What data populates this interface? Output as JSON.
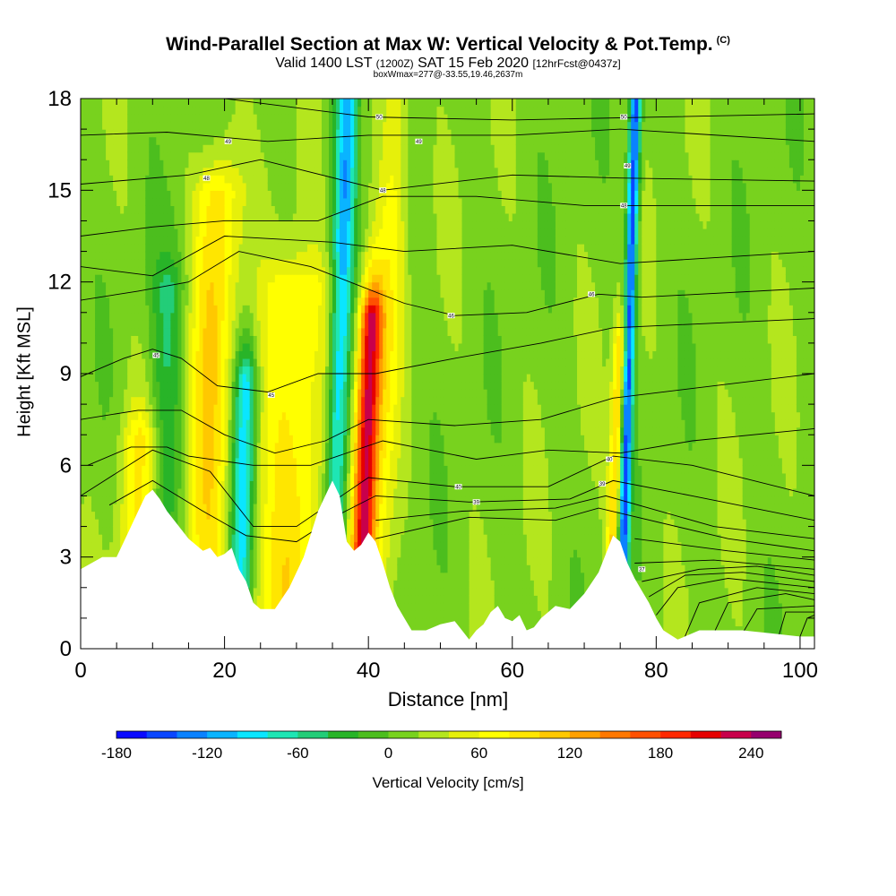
{
  "chart_data": {
    "type": "heatmap",
    "title": "Wind-Parallel Section at Max W: Vertical Velocity & Pot.Temp.",
    "title_mark": "(C)",
    "subtitle_main": "Valid 1400 LST",
    "subtitle_utc": "(1200Z)",
    "subtitle_date": "SAT 15 Feb 2020",
    "subtitle_fcst": "[12hrFcst@0437z]",
    "box_line": "boxWmax=277@-33.55,19.46,2637m",
    "xlabel": "Distance [nm]",
    "ylabel": "Height [Kft MSL]",
    "xlim": [
      0,
      102
    ],
    "ylim": [
      0,
      18
    ],
    "xticks": [
      "0",
      "20",
      "40",
      "60",
      "80",
      "100"
    ],
    "yticks": [
      "0",
      "3",
      "6",
      "9",
      "12",
      "15",
      "18"
    ],
    "colorbar": {
      "label": "Vertical Velocity [cm/s]",
      "ticks": [
        "-180",
        "-120",
        "-60",
        "0",
        "60",
        "120",
        "180",
        "240"
      ],
      "range": [
        -180,
        260
      ],
      "step": 20,
      "colors": [
        "#0a0aff",
        "#0a46ff",
        "#0a82ff",
        "#0ab4ff",
        "#0ae6ff",
        "#1ee6b4",
        "#23cd78",
        "#28b428",
        "#4cbe1e",
        "#78d21e",
        "#b4e61e",
        "#e6f00a",
        "#ffff00",
        "#ffe600",
        "#ffc800",
        "#ffa000",
        "#ff7800",
        "#ff5000",
        "#ff2800",
        "#e60000",
        "#c8004b",
        "#96006e"
      ]
    },
    "updraft_features": [
      {
        "x": 8,
        "width": 2.5,
        "w": 70,
        "ztop": 7
      },
      {
        "x": 17.5,
        "width": 3,
        "w": 85,
        "ztop": 15
      },
      {
        "x": 29,
        "width": 5,
        "w": 75,
        "ztop": 12
      },
      {
        "x": 39.5,
        "width": 1.6,
        "w": 210,
        "ztop": 11
      },
      {
        "x": 42,
        "width": 2,
        "w": 50,
        "ztop": 18
      },
      {
        "x": 74.3,
        "width": 1.0,
        "w": 100,
        "ztop": 10
      }
    ],
    "downdraft_features": [
      {
        "x": 11.5,
        "width": 2.5,
        "w": -50,
        "ztop": 12
      },
      {
        "x": 22.5,
        "width": 1.6,
        "w": -110,
        "ztop": 9
      },
      {
        "x": 35.5,
        "width": 1.5,
        "w": -120,
        "ztop": 18
      },
      {
        "x": 75.6,
        "width": 0.8,
        "w": -170,
        "ztop": 18
      }
    ],
    "terrain_profile": [
      [
        0,
        2.6
      ],
      [
        3,
        3
      ],
      [
        5,
        3
      ],
      [
        6,
        3.5
      ],
      [
        7,
        4
      ],
      [
        8,
        4.5
      ],
      [
        9,
        5
      ],
      [
        10,
        5.2
      ],
      [
        11,
        4.9
      ],
      [
        12,
        4.5
      ],
      [
        13,
        4.2
      ],
      [
        14,
        3.9
      ],
      [
        15,
        3.6
      ],
      [
        16,
        3.4
      ],
      [
        17,
        3.2
      ],
      [
        18,
        3.3
      ],
      [
        19,
        3.0
      ],
      [
        20,
        3.1
      ],
      [
        21,
        3.3
      ],
      [
        22,
        2.6
      ],
      [
        23,
        2.2
      ],
      [
        24,
        1.5
      ],
      [
        25,
        1.3
      ],
      [
        27,
        1.3
      ],
      [
        29,
        2
      ],
      [
        31,
        3
      ],
      [
        33,
        4.5
      ],
      [
        35,
        5.5
      ],
      [
        36,
        5.0
      ],
      [
        37,
        3.5
      ],
      [
        38,
        3.2
      ],
      [
        39,
        3.4
      ],
      [
        40,
        3.8
      ],
      [
        41,
        3.5
      ],
      [
        42,
        2.8
      ],
      [
        43,
        2
      ],
      [
        44,
        1.4
      ],
      [
        45,
        1
      ],
      [
        46,
        0.6
      ],
      [
        48,
        0.6
      ],
      [
        50,
        0.8
      ],
      [
        52,
        0.9
      ],
      [
        53,
        0.6
      ],
      [
        54,
        0.3
      ],
      [
        55,
        0.6
      ],
      [
        56,
        0.8
      ],
      [
        57,
        1.2
      ],
      [
        58,
        1.4
      ],
      [
        59,
        1.0
      ],
      [
        60,
        0.9
      ],
      [
        61,
        1.1
      ],
      [
        62,
        0.6
      ],
      [
        63,
        0.7
      ],
      [
        64,
        1.0
      ],
      [
        65,
        1.2
      ],
      [
        66,
        1.4
      ],
      [
        68,
        1.3
      ],
      [
        70,
        1.8
      ],
      [
        72,
        2.5
      ],
      [
        74,
        3.7
      ],
      [
        75,
        3.5
      ],
      [
        76,
        2.8
      ],
      [
        77,
        2.3
      ],
      [
        78,
        1.9
      ],
      [
        79,
        1.5
      ],
      [
        80,
        1.0
      ],
      [
        81,
        0.6
      ],
      [
        83,
        0.3
      ],
      [
        86,
        0.6
      ],
      [
        92,
        0.6
      ],
      [
        96,
        0.5
      ],
      [
        100,
        0.4
      ],
      [
        102,
        0.4
      ]
    ],
    "isentropes": [
      [
        [
          0,
          18
        ],
        [
          20,
          18
        ],
        [
          40,
          17.4
        ],
        [
          60,
          17.3
        ],
        [
          102,
          17.5
        ]
      ],
      [
        [
          0,
          16.8
        ],
        [
          12,
          16.9
        ],
        [
          26,
          16.6
        ],
        [
          40,
          16.8
        ],
        [
          60,
          16.8
        ],
        [
          75,
          17.0
        ],
        [
          102,
          16.6
        ]
      ],
      [
        [
          0,
          15.2
        ],
        [
          15,
          15.5
        ],
        [
          25,
          16.0
        ],
        [
          42,
          15.0
        ],
        [
          60,
          15.5
        ],
        [
          75,
          15.4
        ],
        [
          102,
          15.3
        ]
      ],
      [
        [
          0,
          13.5
        ],
        [
          10,
          13.8
        ],
        [
          20,
          14.0
        ],
        [
          33,
          14.0
        ],
        [
          42,
          14.8
        ],
        [
          55,
          14.8
        ],
        [
          70,
          14.5
        ],
        [
          102,
          14.5
        ]
      ],
      [
        [
          0,
          12.5
        ],
        [
          10,
          12.2
        ],
        [
          20,
          13.5
        ],
        [
          35,
          13.3
        ],
        [
          45,
          13.0
        ],
        [
          60,
          13.2
        ],
        [
          75,
          12.6
        ],
        [
          102,
          13.0
        ]
      ],
      [
        [
          0,
          11.4
        ],
        [
          8,
          11.7
        ],
        [
          15,
          12.0
        ],
        [
          22,
          13.0
        ],
        [
          32,
          12.5
        ],
        [
          45,
          11.3
        ],
        [
          52,
          10.9
        ],
        [
          62,
          11.0
        ],
        [
          72,
          11.6
        ],
        [
          78,
          11.5
        ],
        [
          102,
          11.8
        ]
      ],
      [
        [
          0,
          8.9
        ],
        [
          6,
          9.5
        ],
        [
          10,
          9.8
        ],
        [
          14,
          9.5
        ],
        [
          19,
          8.6
        ],
        [
          26,
          8.4
        ],
        [
          33,
          9.0
        ],
        [
          41,
          9.0
        ],
        [
          52,
          9.5
        ],
        [
          64,
          10.0
        ],
        [
          74,
          10.5
        ],
        [
          102,
          10.8
        ]
      ],
      [
        [
          0,
          7.5
        ],
        [
          8,
          7.8
        ],
        [
          14,
          7.8
        ],
        [
          20,
          7.0
        ],
        [
          27,
          6.4
        ],
        [
          34,
          6.8
        ],
        [
          40,
          7.5
        ],
        [
          52,
          7.3
        ],
        [
          64,
          7.5
        ],
        [
          74,
          8.2
        ],
        [
          102,
          9.0
        ]
      ],
      [
        [
          1,
          6
        ],
        [
          7,
          6.6
        ],
        [
          12,
          6.6
        ],
        [
          15,
          6.3
        ],
        [
          24,
          6.0
        ],
        [
          32,
          6.0
        ],
        [
          42,
          6.8
        ],
        [
          55,
          6.2
        ],
        [
          65,
          6.5
        ],
        [
          75,
          6.4
        ],
        [
          85,
          6.8
        ],
        [
          102,
          7.2
        ]
      ],
      [
        [
          0,
          5.0
        ],
        [
          10,
          6.5
        ],
        [
          18,
          5.8
        ],
        [
          24,
          4.0
        ],
        [
          30,
          4.0
        ],
        [
          35,
          4.8
        ],
        [
          40,
          5.6
        ],
        [
          52,
          5.3
        ],
        [
          65,
          5.3
        ],
        [
          74,
          6.3
        ],
        [
          85,
          6.0
        ],
        [
          102,
          5.0
        ]
      ],
      [
        [
          4,
          4.7
        ],
        [
          10,
          5.5
        ],
        [
          17,
          4.5
        ],
        [
          23,
          3.7
        ],
        [
          30,
          3.5
        ],
        [
          36,
          4.4
        ],
        [
          41,
          5.0
        ],
        [
          54,
          4.8
        ],
        [
          68,
          4.9
        ],
        [
          74,
          5.5
        ],
        [
          85,
          5.0
        ],
        [
          102,
          4.2
        ]
      ],
      [
        [
          41,
          4.2
        ],
        [
          53,
          4.5
        ],
        [
          66,
          4.6
        ],
        [
          73,
          5.0
        ],
        [
          88,
          4.0
        ],
        [
          102,
          3.6
        ]
      ],
      [
        [
          41,
          3.6
        ],
        [
          54,
          4.3
        ],
        [
          66,
          4.2
        ],
        [
          72,
          4.6
        ],
        [
          90,
          3.6
        ],
        [
          102,
          3.2
        ]
      ],
      [
        [
          77,
          3.6
        ],
        [
          90,
          3.2
        ],
        [
          102,
          2.9
        ]
      ],
      [
        [
          77,
          2.8
        ],
        [
          88,
          2.9
        ],
        [
          102,
          2.6
        ]
      ],
      [
        [
          78,
          2.2
        ],
        [
          86,
          2.6
        ],
        [
          94,
          2.7
        ],
        [
          102,
          2.4
        ]
      ],
      [
        [
          79,
          1.7
        ],
        [
          84,
          2.4
        ],
        [
          92,
          2.5
        ],
        [
          102,
          2.2
        ]
      ],
      [
        [
          80,
          1.1
        ],
        [
          83,
          2.0
        ],
        [
          90,
          2.3
        ],
        [
          102,
          2.0
        ]
      ],
      [
        [
          84,
          0.4
        ],
        [
          86,
          1.5
        ],
        [
          94,
          2.0
        ],
        [
          102,
          1.8
        ]
      ],
      [
        [
          88,
          0.5
        ],
        [
          90,
          1.5
        ],
        [
          98,
          1.8
        ],
        [
          102,
          1.6
        ]
      ],
      [
        [
          92,
          0.5
        ],
        [
          94,
          1.3
        ],
        [
          102,
          1.4
        ]
      ],
      [
        [
          97,
          0.4
        ],
        [
          98,
          1.2
        ],
        [
          102,
          1.2
        ]
      ],
      [
        [
          100,
          0.4
        ],
        [
          101,
          1.0
        ],
        [
          102,
          1.1
        ]
      ]
    ],
    "contour_labels": [
      {
        "x": 10.5,
        "y": 9.6,
        "text": "45"
      },
      {
        "x": 26.5,
        "y": 8.3,
        "text": "45"
      },
      {
        "x": 51.5,
        "y": 10.9,
        "text": "46"
      },
      {
        "x": 71,
        "y": 11.6,
        "text": "46"
      },
      {
        "x": 17.5,
        "y": 15.4,
        "text": "48"
      },
      {
        "x": 42,
        "y": 15.0,
        "text": "48"
      },
      {
        "x": 75.5,
        "y": 14.5,
        "text": "48"
      },
      {
        "x": 20.5,
        "y": 16.6,
        "text": "49"
      },
      {
        "x": 47,
        "y": 16.6,
        "text": "49"
      },
      {
        "x": 76,
        "y": 15.8,
        "text": "49"
      },
      {
        "x": 41.5,
        "y": 17.4,
        "text": "50"
      },
      {
        "x": 75.5,
        "y": 17.4,
        "text": "50"
      },
      {
        "x": 52.5,
        "y": 5.3,
        "text": "40"
      },
      {
        "x": 55,
        "y": 4.8,
        "text": "39"
      },
      {
        "x": 72.5,
        "y": 5.4,
        "text": "39"
      },
      {
        "x": 73.5,
        "y": 6.2,
        "text": "40"
      },
      {
        "x": 78,
        "y": 2.6,
        "text": "37"
      }
    ]
  }
}
